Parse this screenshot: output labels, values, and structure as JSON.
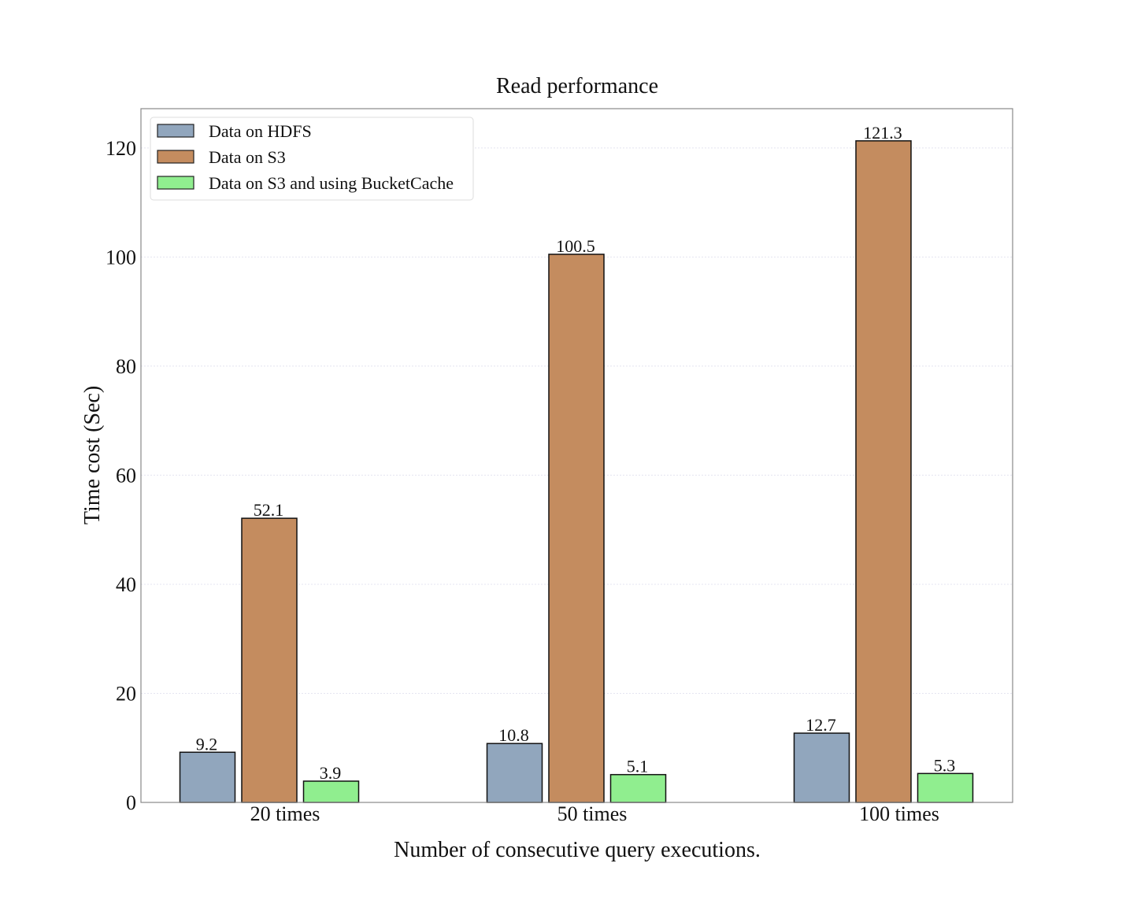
{
  "chart_data": {
    "type": "bar",
    "title": "Read performance",
    "xlabel": "Number of consecutive query executions.",
    "ylabel": "Time cost (Sec)",
    "categories": [
      "20 times",
      "50 times",
      "100 times"
    ],
    "series": [
      {
        "name": "Data on HDFS",
        "values": [
          9.2,
          10.8,
          12.7
        ],
        "color": "#91a6bd"
      },
      {
        "name": "Data on S3",
        "values": [
          52.1,
          100.5,
          121.3
        ],
        "color": "#c48c5f"
      },
      {
        "name": "Data on S3 and using BucketCache",
        "values": [
          3.9,
          5.1,
          5.3
        ],
        "color": "#90ee8f"
      }
    ],
    "data_labels": [
      [
        "9.2",
        "10.8",
        "12.7"
      ],
      [
        "52.1",
        "100.5",
        "121.3"
      ],
      [
        "3.9",
        "5.1",
        "5.3"
      ]
    ],
    "ylim": [
      0,
      127.2
    ],
    "yticks": [
      0,
      20,
      40,
      60,
      80,
      100,
      120
    ],
    "grid": true,
    "legend": "top-left"
  }
}
